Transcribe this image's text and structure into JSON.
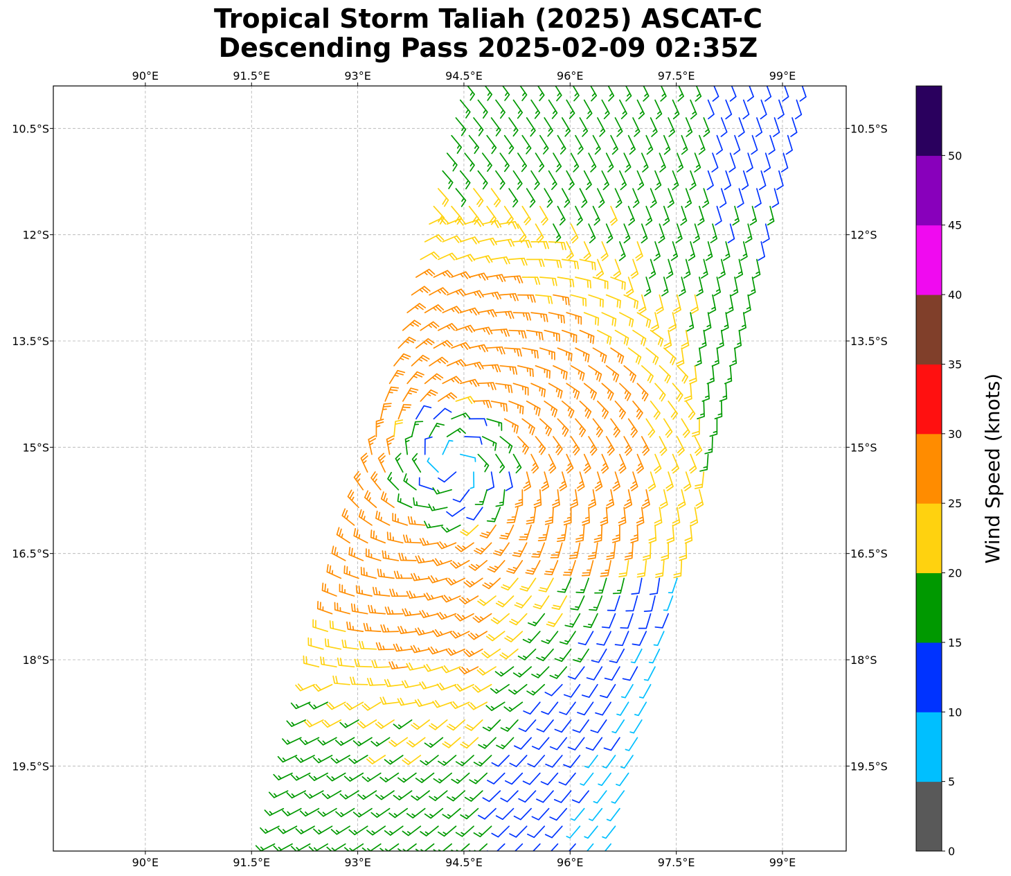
{
  "chart_data": {
    "type": "wind-barb-map",
    "title_line1": "Tropical Storm Taliah (2025) ASCAT-C",
    "title_line2": "Descending Pass 2025-02-09 02:35Z",
    "lon_range": [
      88.7,
      99.9
    ],
    "lat_range": [
      -20.7,
      -9.9
    ],
    "lon_ticks": [
      {
        "value": 90.0,
        "label": "90°E"
      },
      {
        "value": 91.5,
        "label": "91.5°E"
      },
      {
        "value": 93.0,
        "label": "93°E"
      },
      {
        "value": 94.5,
        "label": "94.5°E"
      },
      {
        "value": 96.0,
        "label": "96°E"
      },
      {
        "value": 97.5,
        "label": "97.5°E"
      },
      {
        "value": 99.0,
        "label": "99°E"
      }
    ],
    "lat_ticks": [
      {
        "value": -10.5,
        "label": "10.5°S"
      },
      {
        "value": -12.0,
        "label": "12°S"
      },
      {
        "value": -13.5,
        "label": "13.5°S"
      },
      {
        "value": -15.0,
        "label": "15°S"
      },
      {
        "value": -16.5,
        "label": "16.5°S"
      },
      {
        "value": -18.0,
        "label": "18°S"
      },
      {
        "value": -19.5,
        "label": "19.5°S"
      }
    ],
    "grid": true,
    "storm_center": {
      "lon": 94.35,
      "lat": -15.25
    },
    "swath": {
      "north_lon_range": [
        94.5,
        99.3
      ],
      "south_lon_range": [
        91.8,
        97.0
      ],
      "lat_top": -9.9,
      "lat_bottom": -20.7
    },
    "colorbar": {
      "label": "Wind Speed (knots)",
      "bins": [
        {
          "min": 0,
          "max": 5,
          "color": "#595959"
        },
        {
          "min": 5,
          "max": 10,
          "color": "#00bfff"
        },
        {
          "min": 10,
          "max": 15,
          "color": "#0033ff"
        },
        {
          "min": 15,
          "max": 20,
          "color": "#009900"
        },
        {
          "min": 20,
          "max": 25,
          "color": "#ffd20f"
        },
        {
          "min": 25,
          "max": 30,
          "color": "#ff8c00"
        },
        {
          "min": 30,
          "max": 35,
          "color": "#ff1010"
        },
        {
          "min": 35,
          "max": 40,
          "color": "#803f2a"
        },
        {
          "min": 40,
          "max": 45,
          "color": "#f00af0"
        },
        {
          "min": 45,
          "max": 50,
          "color": "#8800bb"
        },
        {
          "min": 50,
          "max": 55,
          "color": "#2a005e"
        }
      ],
      "tick_labels": [
        "0",
        "5",
        "10",
        "15",
        "20",
        "25",
        "30",
        "35",
        "40",
        "45",
        "50"
      ]
    }
  }
}
